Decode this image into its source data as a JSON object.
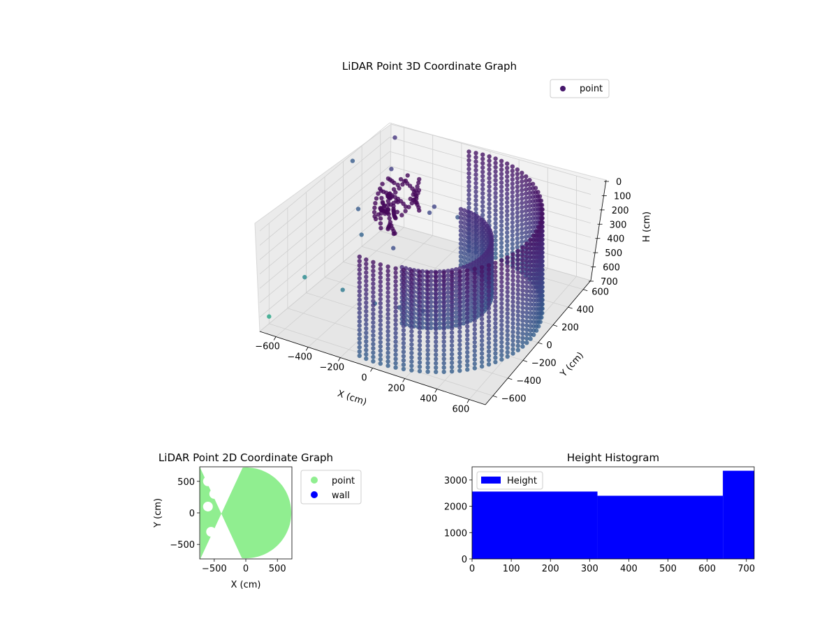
{
  "chart_data": [
    {
      "type": "scatter",
      "title": "LiDAR Point 3D Coordinate Graph",
      "xlabel": "X (cm)",
      "ylabel": "Y (cm)",
      "zlabel": "H (cm)",
      "xlim": [
        -700,
        700
      ],
      "ylim": [
        -700,
        700
      ],
      "zlim": [
        0,
        700
      ],
      "x_ticks": [
        -600,
        -400,
        -200,
        0,
        200,
        400,
        600
      ],
      "y_ticks": [
        -600,
        -400,
        -200,
        0,
        200,
        400,
        600
      ],
      "z_ticks": [
        0,
        100,
        200,
        300,
        400,
        500,
        600,
        700
      ],
      "z_inverted": true,
      "legend": {
        "position": "upper right",
        "entries": [
          "point"
        ]
      },
      "colormap": "viridis",
      "series": [
        {
          "name": "point",
          "color": "#46166b",
          "structures": [
            {
              "kind": "wall_arc",
              "radius": 650,
              "angle_range_deg": [
                -100,
                100
              ],
              "height_range": [
                0,
                700
              ]
            },
            {
              "kind": "inner_arc",
              "radius": 350,
              "angle_range_deg": [
                -90,
                90
              ],
              "height_range": [
                200,
                600
              ]
            },
            {
              "kind": "dense_cluster",
              "x": -300,
              "y": 100,
              "height_range": [
                0,
                250
              ]
            }
          ],
          "scattered_points": [
            {
              "x": -650,
              "y": -300,
              "h": 520
            },
            {
              "x": -600,
              "y": 200,
              "h": 300
            },
            {
              "x": -500,
              "y": 400,
              "h": 100
            },
            {
              "x": -400,
              "y": -100,
              "h": 250
            },
            {
              "x": -350,
              "y": -400,
              "h": 450
            },
            {
              "x": -300,
              "y": 500,
              "h": 400
            },
            {
              "x": -250,
              "y": 0,
              "h": 350
            },
            {
              "x": -200,
              "y": -300,
              "h": 550
            },
            {
              "x": -150,
              "y": 300,
              "h": 200
            },
            {
              "x": -100,
              "y": -200,
              "h": 600
            },
            {
              "x": -50,
              "y": 400,
              "h": 300
            },
            {
              "x": 0,
              "y": -100,
              "h": 650
            },
            {
              "x": -700,
              "y": -600,
              "h": 650
            },
            {
              "x": -700,
              "y": 300,
              "h": 50
            },
            {
              "x": -600,
              "y": 600,
              "h": 20
            }
          ]
        }
      ]
    },
    {
      "type": "scatter",
      "title": "LiDAR Point 2D Coordinate Graph",
      "xlabel": "X (cm)",
      "ylabel": "Y (cm)",
      "xlim": [
        -730,
        730
      ],
      "ylim": [
        -730,
        730
      ],
      "x_ticks": [
        -500,
        0,
        500
      ],
      "y_ticks": [
        -500,
        0,
        500
      ],
      "legend": {
        "position": "outside right",
        "entries": [
          {
            "name": "point",
            "color": "#90ee90"
          },
          {
            "name": "wall",
            "color": "#0000ff"
          }
        ]
      },
      "series": [
        {
          "name": "point",
          "color": "#90ee90",
          "shape": "filled half-disk",
          "radius": 720,
          "angle_range_deg": [
            -95,
            95
          ],
          "notches": [
            {
              "x": -600,
              "y": 500
            },
            {
              "x": -500,
              "y": 300
            },
            {
              "x": -600,
              "y": 100
            },
            {
              "x": -550,
              "y": -300
            },
            {
              "x": -500,
              "y": -450
            },
            {
              "x": -400,
              "y": -600
            },
            {
              "x": -300,
              "y": -700
            }
          ]
        },
        {
          "name": "wall",
          "color": "#0000ff",
          "points": []
        }
      ]
    },
    {
      "type": "bar",
      "title": "Height Histogram",
      "xlabel": "",
      "ylabel": "",
      "xlim": [
        0,
        720
      ],
      "ylim": [
        0,
        3500
      ],
      "x_ticks": [
        0,
        100,
        200,
        300,
        400,
        500,
        600,
        700
      ],
      "y_ticks": [
        0,
        1000,
        2000,
        3000
      ],
      "legend": {
        "position": "upper left",
        "entries": [
          "Height"
        ]
      },
      "series": [
        {
          "name": "Height",
          "color": "#0000ff",
          "bins": [
            {
              "x0": 0,
              "x1": 320,
              "count": 2560
            },
            {
              "x0": 320,
              "x1": 640,
              "count": 2400
            },
            {
              "x0": 640,
              "x1": 720,
              "count": 3350
            }
          ]
        }
      ]
    }
  ]
}
